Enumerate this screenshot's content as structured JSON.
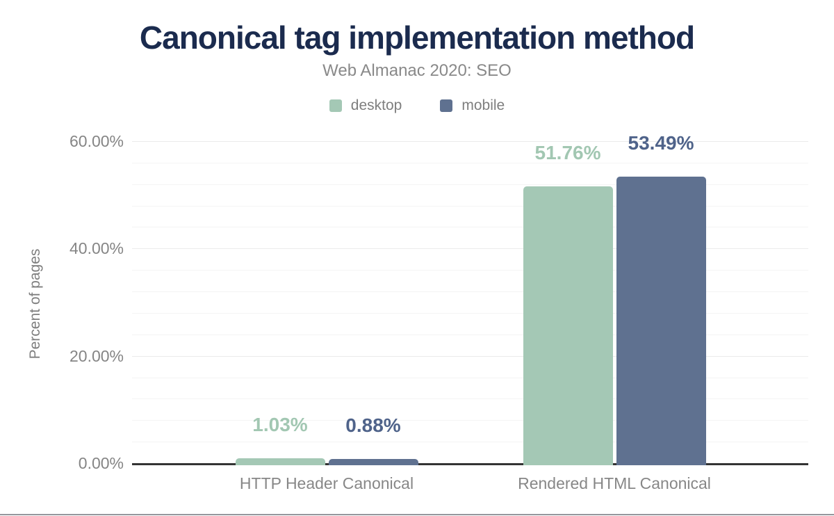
{
  "figure": {
    "title": "Canonical tag implementation method",
    "subtitle": "Web Almanac 2020: SEO"
  },
  "colors": {
    "title": "#1b2b4e",
    "muted_text": "#858585",
    "axis_line": "#333333",
    "grid_minor": "#f4f4f4",
    "grid_major": "#ebebeb",
    "footer_divider": "#94969c",
    "desktop": "#a4c8b5",
    "mobile": "#5f7190",
    "desktop_value_label": "#a2c7b2",
    "mobile_value_label": "#4f638a"
  },
  "chart_data": {
    "type": "bar",
    "title": "Canonical tag implementation method",
    "subtitle": "Web Almanac 2020: SEO",
    "categories": [
      "HTTP Header Canonical",
      "Rendered HTML Canonical"
    ],
    "series": [
      {
        "name": "desktop",
        "color": "#a4c8b5",
        "label_color": "#a2c7b2",
        "values": [
          1.03,
          51.76
        ],
        "value_labels": [
          "1.03%",
          "51.76%"
        ]
      },
      {
        "name": "mobile",
        "color": "#5f7190",
        "label_color": "#4f638a",
        "values": [
          0.88,
          53.49
        ],
        "value_labels": [
          "0.88%",
          "53.49%"
        ]
      }
    ],
    "xlabel": "",
    "ylabel": "Percent of pages",
    "ylim": [
      0,
      60
    ],
    "yticks": [
      {
        "value": 0,
        "label": "0.00%"
      },
      {
        "value": 20,
        "label": "20.00%"
      },
      {
        "value": 40,
        "label": "40.00%"
      },
      {
        "value": 60,
        "label": "60.00%"
      }
    ],
    "grid": true,
    "minor_grid_step_percent": 4,
    "legend_position": "top",
    "bar_value_labels_shown": true
  }
}
